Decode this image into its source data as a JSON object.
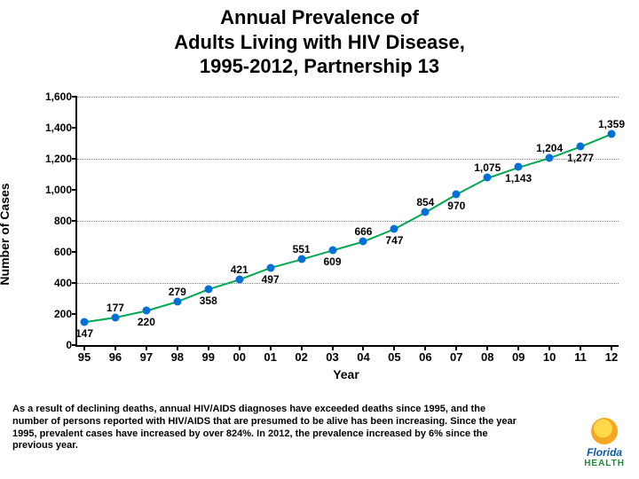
{
  "title_line1": "Annual Prevalence of",
  "title_line2": "Adults Living with HIV Disease,",
  "title_line3": "1995-2012, Partnership 13",
  "caption": "As a result of declining deaths, annual HIV/AIDS diagnoses have exceeded deaths since 1995, and the number of persons reported with HIV/AIDS that are presumed to be alive has been increasing.  Since the year 1995, prevalent cases have increased by over 824%.  In 2012, the prevalence increased by 6% since the previous year.",
  "logo_text1": "Florida",
  "logo_text2": "HEALTH",
  "chart": {
    "type": "line",
    "ylabel": "Number of Cases",
    "xlabel": "Year",
    "ylim": [
      0,
      1600
    ],
    "ytick_step": 200,
    "yticks": [
      0,
      200,
      400,
      600,
      800,
      1000,
      1200,
      1400,
      1600
    ],
    "ytick_labels": [
      "0",
      "200",
      "400",
      "600",
      "800",
      "1,000",
      "1,200",
      "1,400",
      "1,600"
    ],
    "grid_at": [
      400,
      800,
      1200,
      1600
    ],
    "grid_color": "#888888",
    "background_color": "#ffffff",
    "axis_color": "#000000",
    "label_fontsize": 14,
    "tick_fontsize": 12,
    "data_label_fontsize": 12,
    "series": [
      {
        "name": "prevalence",
        "line_color": "#00a84f",
        "line_width": 2,
        "marker_color": "#0070d8",
        "marker_size": 9,
        "x": [
          "95",
          "96",
          "97",
          "98",
          "99",
          "00",
          "01",
          "02",
          "03",
          "04",
          "05",
          "06",
          "07",
          "08",
          "09",
          "10",
          "11",
          "12"
        ],
        "y": [
          147,
          177,
          220,
          279,
          358,
          421,
          497,
          551,
          609,
          666,
          747,
          854,
          970,
          1075,
          1143,
          1204,
          1277,
          1359
        ],
        "labels": [
          "147",
          "177",
          "220",
          "279",
          "358",
          "421",
          "497",
          "551",
          "609",
          "666",
          "747",
          "854",
          "970",
          "1,075",
          "1,143",
          "1,204",
          "1,277",
          "1,359"
        ],
        "label_pos": [
          "below",
          "above",
          "below",
          "above",
          "below",
          "above",
          "below",
          "above",
          "below",
          "above",
          "below",
          "above",
          "below",
          "above",
          "below",
          "above",
          "below",
          "above"
        ]
      }
    ]
  }
}
